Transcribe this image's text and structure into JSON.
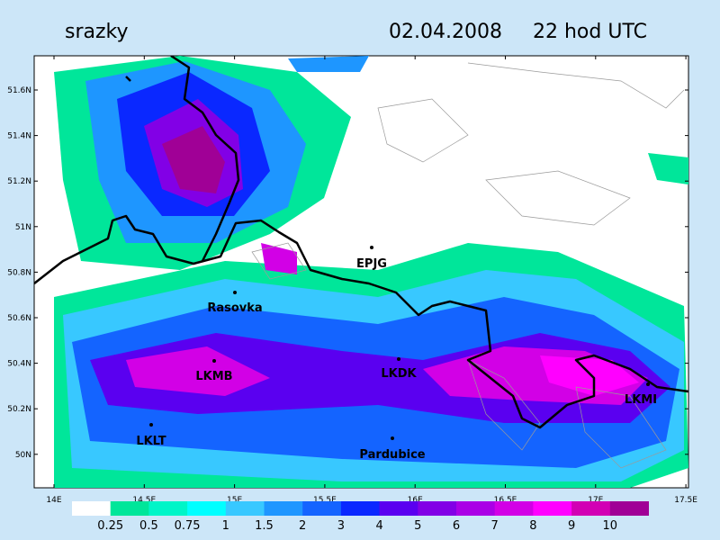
{
  "header": {
    "title": "srazky",
    "date": "02.04.2008",
    "time": "22 hod UTC"
  },
  "map": {
    "lat_labels": [
      "51.6N",
      "51.4N",
      "51.2N",
      "51N",
      "50.8N",
      "50.6N",
      "50.4N",
      "50.2N",
      "50N"
    ],
    "lon_labels": [
      "14E",
      "14.5E",
      "15E",
      "15.5E",
      "16E",
      "16.5E",
      "17E",
      "17.5E"
    ],
    "stations": [
      {
        "name": "EPJG"
      },
      {
        "name": "Rasovka"
      },
      {
        "name": "LKMB"
      },
      {
        "name": "LKDK"
      },
      {
        "name": "LKMI"
      },
      {
        "name": "LKLT"
      },
      {
        "name": "Pardubice"
      }
    ]
  },
  "legend": {
    "labels": [
      "0.25",
      "0.5",
      "0.75",
      "1",
      "1.5",
      "2",
      "3",
      "4",
      "5",
      "6",
      "7",
      "8",
      "9",
      "10"
    ],
    "colors": [
      "#ffffff",
      "#00e69a",
      "#00f5c8",
      "#00ffff",
      "#38c8ff",
      "#1e96ff",
      "#1464ff",
      "#0a28ff",
      "#5a00f0",
      "#8200e6",
      "#aa00e6",
      "#d200e6",
      "#ff00ff",
      "#d200b4",
      "#a00096"
    ]
  }
}
